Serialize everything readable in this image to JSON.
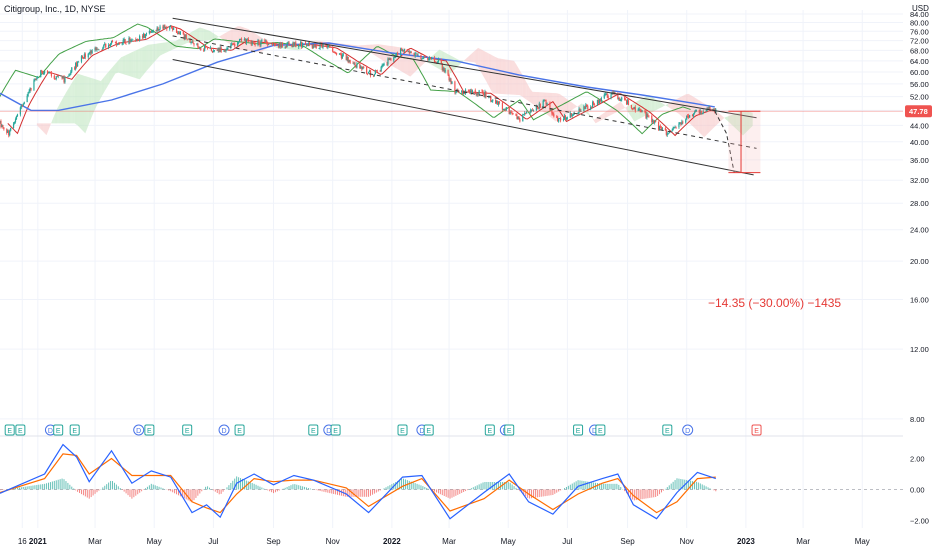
{
  "header": {
    "symbol_title": "Citigroup, Inc., 1D, NYSE",
    "currency": "USD"
  },
  "colors": {
    "up": "#26a69a",
    "down": "#ef5350",
    "ma_blue": "#4a74e8",
    "ma_red": "#d32f2f",
    "lagging_green": "#43a047",
    "cloud_green": "#b9e3b9",
    "cloud_red": "#f6c1c1",
    "price_badge": "#ef5350",
    "macd_line": "#2962ff",
    "signal_line": "#ff6d00",
    "projection_text": "#e53935",
    "channel_line": "#333333",
    "grid": "#f0f3fa"
  },
  "chart_data": [
    {
      "type": "candlestick",
      "title": "Citigroup, Inc., 1D, NYSE",
      "price_axis": {
        "scale": "log",
        "ylim": [
          7.5,
          86
        ],
        "ticks": [
          84,
          80,
          76,
          72,
          68,
          64,
          60,
          56,
          52,
          48,
          44,
          40,
          36,
          32,
          28,
          24,
          20,
          16,
          12,
          8
        ],
        "tick_labels": [
          "84.00",
          "80.00",
          "76.00",
          "72.00",
          "68.00",
          "64.00",
          "60.00",
          "56.00",
          "52.00",
          "48.00",
          "44.00",
          "40.00",
          "36.00",
          "32.00",
          "28.00",
          "24.00",
          "20.00",
          "16.00",
          "12.00",
          "8.00"
        ]
      },
      "time_axis": {
        "labels": [
          "16",
          "2021",
          "Mar",
          "May",
          "Jul",
          "Sep",
          "Nov",
          "2022",
          "Mar",
          "May",
          "Jul",
          "Sep",
          "Nov",
          "2023",
          "Mar",
          "May"
        ],
        "label_positions": [
          "2020-12-16",
          "2021-01-01",
          "2021-03-01",
          "2021-05-01",
          "2021-07-01",
          "2021-09-01",
          "2021-11-01",
          "2022-01-01",
          "2022-03-01",
          "2022-05-01",
          "2022-07-01",
          "2022-09-01",
          "2022-11-01",
          "2023-01-01",
          "2023-03-01",
          "2023-05-01"
        ],
        "range": [
          "2020-11-23",
          "2023-06-12"
        ]
      },
      "last_price": "47.78",
      "price_path": [
        [
          "2020-11-23",
          44.5
        ],
        [
          "2020-12-03",
          42.0
        ],
        [
          "2020-12-14",
          49.0
        ],
        [
          "2021-01-04",
          60.0
        ],
        [
          "2021-01-28",
          57.5
        ],
        [
          "2021-02-18",
          66.0
        ],
        [
          "2021-03-18",
          71.0
        ],
        [
          "2021-04-15",
          72.5
        ],
        [
          "2021-05-10",
          78.5
        ],
        [
          "2021-05-20",
          77.0
        ],
        [
          "2021-06-18",
          69.0
        ],
        [
          "2021-07-12",
          68.0
        ],
        [
          "2021-07-28",
          72.0
        ],
        [
          "2021-08-18",
          71.0
        ],
        [
          "2021-09-10",
          70.0
        ],
        [
          "2021-10-01",
          70.5
        ],
        [
          "2021-10-28",
          69.0
        ],
        [
          "2021-11-18",
          64.0
        ],
        [
          "2021-12-13",
          59.0
        ],
        [
          "2022-01-12",
          69.0
        ],
        [
          "2022-02-01",
          65.0
        ],
        [
          "2022-02-18",
          64.0
        ],
        [
          "2022-03-08",
          53.5
        ],
        [
          "2022-04-05",
          53.0
        ],
        [
          "2022-05-12",
          45.5
        ],
        [
          "2022-06-08",
          50.5
        ],
        [
          "2022-06-22",
          45.0
        ],
        [
          "2022-07-21",
          49.0
        ],
        [
          "2022-08-16",
          53.0
        ],
        [
          "2022-09-16",
          47.5
        ],
        [
          "2022-10-12",
          41.5
        ],
        [
          "2022-11-02",
          46.5
        ],
        [
          "2022-11-23",
          48.5
        ],
        [
          "2022-12-01",
          47.78
        ]
      ],
      "moving_average_long": [
        [
          "2020-11-23",
          53.0
        ],
        [
          "2020-12-25",
          48.0
        ],
        [
          "2021-01-22",
          48.0
        ],
        [
          "2021-03-18",
          51.0
        ],
        [
          "2021-05-10",
          56.0
        ],
        [
          "2021-07-05",
          63.5
        ],
        [
          "2021-09-01",
          70.0
        ],
        [
          "2021-10-28",
          71.0
        ],
        [
          "2022-01-01",
          67.0
        ],
        [
          "2022-03-08",
          64.0
        ],
        [
          "2022-05-12",
          59.0
        ],
        [
          "2022-07-21",
          55.0
        ],
        [
          "2022-09-16",
          52.5
        ],
        [
          "2022-11-09",
          50.0
        ],
        [
          "2022-11-30",
          49.0
        ]
      ],
      "channel": {
        "upper": [
          [
            "2021-05-20",
            82.0
          ],
          [
            "2023-01-12",
            46.0
          ]
        ],
        "lower": [
          [
            "2021-05-20",
            64.5
          ],
          [
            "2023-01-09",
            33.0
          ]
        ],
        "midline": [
          [
            "2021-05-20",
            74.0
          ],
          [
            "2023-01-12",
            38.5
          ]
        ]
      },
      "projection": {
        "from": [
          "2022-12-27",
          47.78
        ],
        "to": [
          "2022-12-27",
          33.43
        ],
        "label": "−14.35 (−30.00%) −1435"
      },
      "event_markers": {
        "labels": [
          "E",
          "D"
        ],
        "dates": [
          "2020-12-03",
          "2020-12-14",
          "2021-01-14",
          "2021-01-22",
          "2021-02-08",
          "2021-04-15",
          "2021-04-26",
          "2021-06-04",
          "2021-07-12",
          "2021-07-28",
          "2021-10-12",
          "2021-10-28",
          "2021-11-04",
          "2022-01-12",
          "2022-02-01",
          "2022-02-08",
          "2022-04-12",
          "2022-04-28",
          "2022-05-02",
          "2022-07-12",
          "2022-07-29",
          "2022-08-04",
          "2022-10-12",
          "2022-11-02",
          "2023-01-12"
        ]
      }
    },
    {
      "type": "macd",
      "ylim": [
        -2.5,
        3.2
      ],
      "ticks": [
        2,
        0,
        -2
      ],
      "tick_labels": [
        "2.00",
        "0.00",
        "−2.00"
      ],
      "macd_line": [
        [
          "2020-11-23",
          -0.25
        ],
        [
          "2021-01-08",
          1.0
        ],
        [
          "2021-01-27",
          2.9
        ],
        [
          "2021-02-10",
          2.1
        ],
        [
          "2021-02-23",
          0.5
        ],
        [
          "2021-03-18",
          2.5
        ],
        [
          "2021-04-08",
          0.4
        ],
        [
          "2021-04-28",
          1.2
        ],
        [
          "2021-05-18",
          0.8
        ],
        [
          "2021-06-09",
          -1.5
        ],
        [
          "2021-06-24",
          -1.0
        ],
        [
          "2021-07-08",
          -1.8
        ],
        [
          "2021-07-25",
          0.4
        ],
        [
          "2021-08-12",
          1.0
        ],
        [
          "2021-09-01",
          0.3
        ],
        [
          "2021-09-22",
          0.9
        ],
        [
          "2021-10-12",
          0.6
        ],
        [
          "2021-11-15",
          -0.3
        ],
        [
          "2021-12-08",
          -1.5
        ],
        [
          "2022-01-12",
          0.8
        ],
        [
          "2022-02-01",
          0.9
        ],
        [
          "2022-03-02",
          -1.9
        ],
        [
          "2022-04-06",
          -0.2
        ],
        [
          "2022-05-02",
          1.0
        ],
        [
          "2022-05-22",
          -0.8
        ],
        [
          "2022-06-16",
          -1.6
        ],
        [
          "2022-07-12",
          0.2
        ],
        [
          "2022-08-06",
          0.7
        ],
        [
          "2022-08-22",
          1.0
        ],
        [
          "2022-09-07",
          -1.0
        ],
        [
          "2022-10-01",
          -1.9
        ],
        [
          "2022-10-22",
          -0.2
        ],
        [
          "2022-11-12",
          1.1
        ],
        [
          "2022-12-01",
          0.7
        ]
      ],
      "signal_line": [
        [
          "2020-11-23",
          -0.2
        ],
        [
          "2021-01-08",
          0.7
        ],
        [
          "2021-01-27",
          2.3
        ],
        [
          "2021-02-10",
          2.2
        ],
        [
          "2021-02-23",
          1.0
        ],
        [
          "2021-03-18",
          2.0
        ],
        [
          "2021-04-08",
          0.9
        ],
        [
          "2021-04-28",
          0.9
        ],
        [
          "2021-05-18",
          0.9
        ],
        [
          "2021-06-09",
          -0.8
        ],
        [
          "2021-06-24",
          -1.2
        ],
        [
          "2021-07-08",
          -1.5
        ],
        [
          "2021-07-25",
          -0.3
        ],
        [
          "2021-08-12",
          0.7
        ],
        [
          "2021-09-01",
          0.5
        ],
        [
          "2021-09-22",
          0.6
        ],
        [
          "2021-10-12",
          0.6
        ],
        [
          "2021-11-15",
          0.1
        ],
        [
          "2021-12-08",
          -1.1
        ],
        [
          "2022-01-12",
          0.2
        ],
        [
          "2022-02-01",
          0.7
        ],
        [
          "2022-03-02",
          -1.4
        ],
        [
          "2022-04-06",
          -0.6
        ],
        [
          "2022-05-02",
          0.6
        ],
        [
          "2022-05-22",
          -0.3
        ],
        [
          "2022-06-16",
          -1.3
        ],
        [
          "2022-07-12",
          -0.3
        ],
        [
          "2022-08-06",
          0.4
        ],
        [
          "2022-08-22",
          0.7
        ],
        [
          "2022-09-07",
          -0.4
        ],
        [
          "2022-10-01",
          -1.5
        ],
        [
          "2022-10-22",
          -0.8
        ],
        [
          "2022-11-12",
          0.7
        ],
        [
          "2022-12-01",
          0.8
        ]
      ]
    }
  ]
}
